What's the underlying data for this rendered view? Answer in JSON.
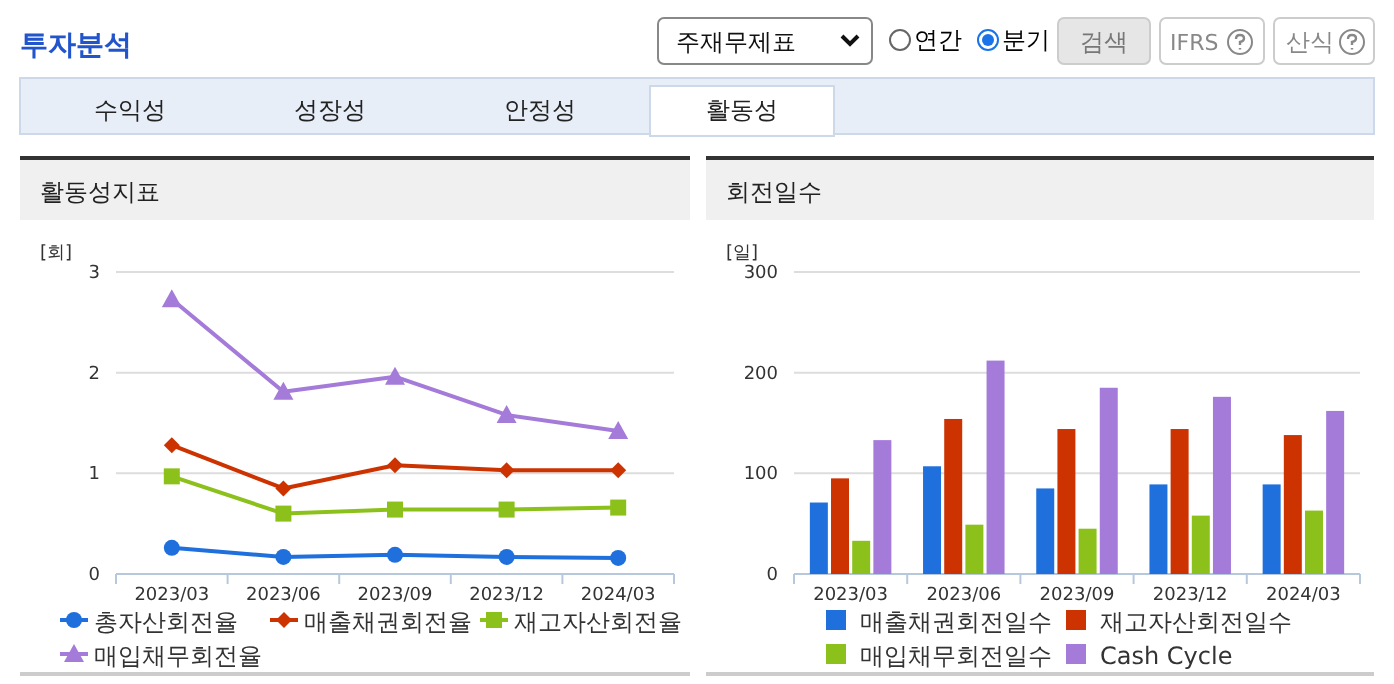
{
  "chart_data": [
    {
      "type": "other",
      "title": "투자분석",
      "annotations": [
        "주재무제표",
        "연간",
        "분기",
        "검색",
        "IFRS",
        "산식",
        "수익성",
        "성장성",
        "안정성",
        "활동성"
      ]
    },
    {
      "type": "line",
      "title": "활동성지표",
      "ylabel": "[회]",
      "categories": [
        "2023/03",
        "2023/06",
        "2023/09",
        "2023/12",
        "2024/03"
      ],
      "ylim": [
        0,
        3
      ],
      "yticks": [
        0,
        1,
        2,
        3
      ],
      "grid": "y",
      "legend": "bottom",
      "line_style": "solid",
      "series": [
        {
          "name": "총자산회전율",
          "color": "#1f6fdc",
          "marker": "circle",
          "values": [
            0.26,
            0.17,
            0.19,
            0.17,
            0.16
          ]
        },
        {
          "name": "매출채권회전율",
          "color": "#cc3300",
          "marker": "diamond",
          "values": [
            1.28,
            0.85,
            1.08,
            1.03,
            1.03
          ]
        },
        {
          "name": "재고자산회전율",
          "color": "#8cc11c",
          "marker": "square",
          "values": [
            0.97,
            0.6,
            0.64,
            0.64,
            0.66
          ]
        },
        {
          "name": "매입채무회전율",
          "color": "#a57bd9",
          "marker": "triangle",
          "values": [
            2.73,
            1.81,
            1.96,
            1.58,
            1.42
          ]
        }
      ]
    },
    {
      "type": "bar",
      "title": "회전일수",
      "ylabel": "[일]",
      "categories": [
        "2023/03",
        "2023/06",
        "2023/09",
        "2023/12",
        "2024/03"
      ],
      "ylim": [
        0,
        300
      ],
      "yticks": [
        0,
        100,
        200,
        300
      ],
      "grid": "y",
      "legend": "bottom",
      "series": [
        {
          "name": "매출채권회전일수",
          "color": "#1f6fdc",
          "values": [
            71,
            107,
            85,
            89,
            89
          ]
        },
        {
          "name": "재고자산회전일수",
          "color": "#cc3300",
          "values": [
            95,
            154,
            144,
            144,
            138
          ]
        },
        {
          "name": "매입채무회전일수",
          "color": "#8cc11c",
          "values": [
            33,
            49,
            45,
            58,
            63
          ]
        },
        {
          "name": "Cash Cycle",
          "color": "#a57bd9",
          "values": [
            133,
            212,
            185,
            176,
            162
          ]
        }
      ]
    }
  ]
}
